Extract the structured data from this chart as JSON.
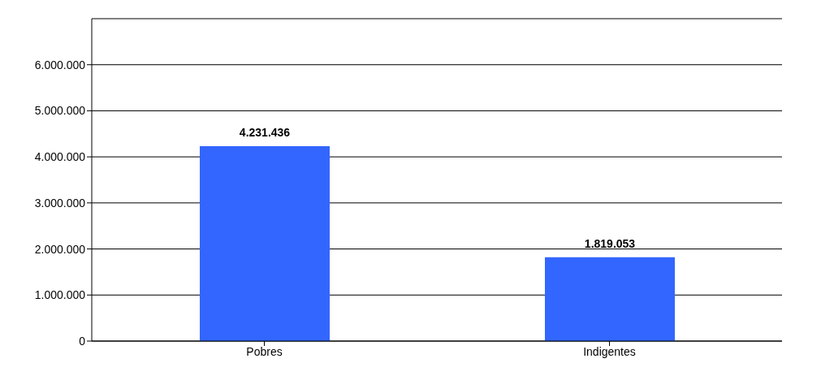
{
  "chart_data": {
    "type": "bar",
    "categories": [
      "Pobres",
      "Indigentes"
    ],
    "values": [
      4231436,
      1819053
    ],
    "color": "#3366ff",
    "value_labels": [
      "4.231.436",
      "1.819.053"
    ],
    "ylim": [
      0,
      7000000
    ],
    "yticks": [
      {
        "value": 0,
        "label": "0"
      },
      {
        "value": 1000000,
        "label": "1.000.000"
      },
      {
        "value": 2000000,
        "label": "2.000.000"
      },
      {
        "value": 3000000,
        "label": "3.000.000"
      },
      {
        "value": 4000000,
        "label": "4.000.000"
      },
      {
        "value": 5000000,
        "label": "5.000.000"
      },
      {
        "value": 6000000,
        "label": "6.000.000"
      }
    ],
    "grid": "y"
  }
}
